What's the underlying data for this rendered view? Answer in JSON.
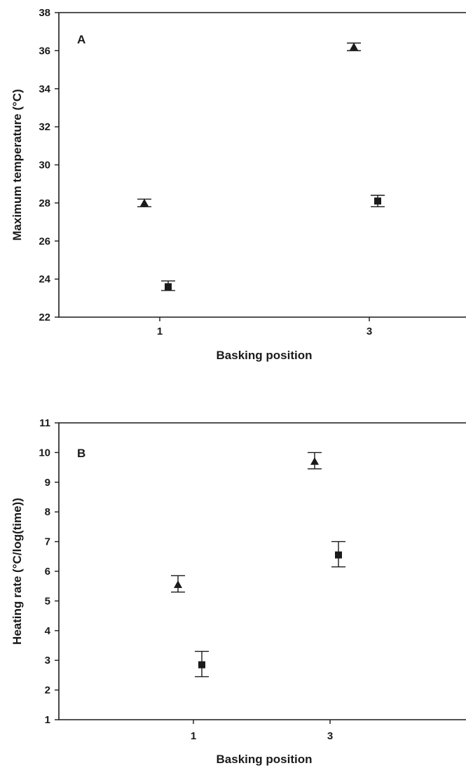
{
  "chart_data": [
    {
      "panel": "A",
      "type": "scatter",
      "xlabel": "Basking position",
      "ylabel": "Maximum temperature (°C)",
      "x_ticks": [
        1,
        3
      ],
      "ylim": [
        22,
        38
      ],
      "y_ticks": [
        22,
        24,
        26,
        28,
        30,
        32,
        34,
        36,
        38
      ],
      "grid": false,
      "series": [
        {
          "marker": "triangle",
          "points": [
            {
              "x": 1,
              "y": 28.0,
              "err_low": 27.8,
              "err_high": 28.2
            },
            {
              "x": 3,
              "y": 36.2,
              "err_low": 36.0,
              "err_high": 36.4
            }
          ]
        },
        {
          "marker": "square",
          "points": [
            {
              "x": 1,
              "y": 23.6,
              "err_low": 23.4,
              "err_high": 23.9
            },
            {
              "x": 3,
              "y": 28.1,
              "err_low": 27.8,
              "err_high": 28.4
            }
          ]
        }
      ]
    },
    {
      "panel": "B",
      "type": "scatter",
      "xlabel": "Basking position",
      "ylabel": "Heating rate (°C/log(time))",
      "x_ticks": [
        1,
        3
      ],
      "ylim": [
        1,
        11
      ],
      "y_ticks": [
        1,
        2,
        3,
        4,
        5,
        6,
        7,
        8,
        9,
        10,
        11
      ],
      "grid": false,
      "series": [
        {
          "marker": "triangle",
          "points": [
            {
              "x": 1,
              "y": 5.55,
              "err_low": 5.3,
              "err_high": 5.85
            },
            {
              "x": 3,
              "y": 9.7,
              "err_low": 9.45,
              "err_high": 10.0
            }
          ]
        },
        {
          "marker": "square",
          "points": [
            {
              "x": 1,
              "y": 2.85,
              "err_low": 2.45,
              "err_high": 3.3
            },
            {
              "x": 3,
              "y": 6.55,
              "err_low": 6.15,
              "err_high": 7.0
            }
          ]
        }
      ]
    }
  ]
}
